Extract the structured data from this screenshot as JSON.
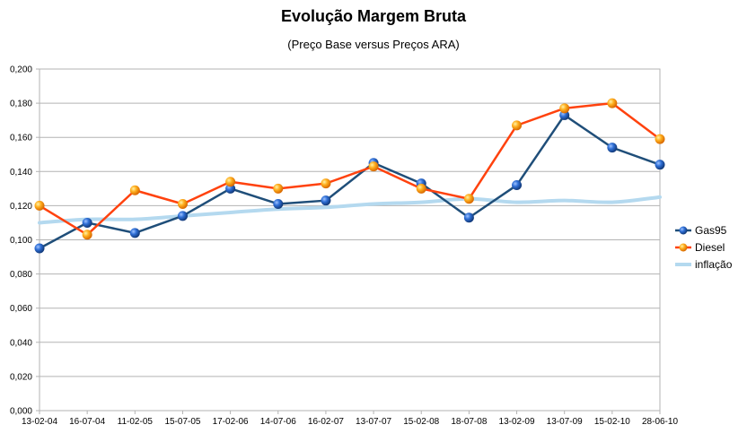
{
  "chart_data": {
    "type": "line",
    "title": "Evolução Margem Bruta",
    "subtitle": "(Preço Base versus Preços ARA)",
    "xlabel": "",
    "ylabel": "",
    "categories": [
      "13-02-04",
      "16-07-04",
      "11-02-05",
      "15-07-05",
      "17-02-06",
      "14-07-06",
      "16-02-07",
      "13-07-07",
      "15-02-08",
      "18-07-08",
      "13-02-09",
      "13-07-09",
      "15-02-10",
      "28-06-10"
    ],
    "ylim": [
      0,
      0.2
    ],
    "yticks": [
      "0,000",
      "0,020",
      "0,040",
      "0,060",
      "0,080",
      "0,100",
      "0,120",
      "0,140",
      "0,160",
      "0,180",
      "0,200"
    ],
    "grid": true,
    "legend_position": "right",
    "series": [
      {
        "name": "Gas95",
        "color": "#1f4e79",
        "marker": "sphere",
        "values": [
          0.095,
          0.11,
          0.104,
          0.114,
          0.13,
          0.121,
          0.123,
          0.145,
          0.133,
          0.113,
          0.132,
          0.173,
          0.154,
          0.144
        ]
      },
      {
        "name": "Diesel",
        "color": "#ff420e",
        "marker": "sphere",
        "values": [
          0.12,
          0.103,
          0.129,
          0.121,
          0.134,
          0.13,
          0.133,
          0.143,
          0.13,
          0.124,
          0.167,
          0.177,
          0.18,
          0.159
        ]
      },
      {
        "name": "inflação",
        "color": "#b4d9ef",
        "marker": "none",
        "values": [
          0.11,
          0.112,
          0.112,
          0.114,
          0.116,
          0.118,
          0.119,
          0.121,
          0.122,
          0.124,
          0.122,
          0.123,
          0.122,
          0.125
        ]
      }
    ]
  }
}
